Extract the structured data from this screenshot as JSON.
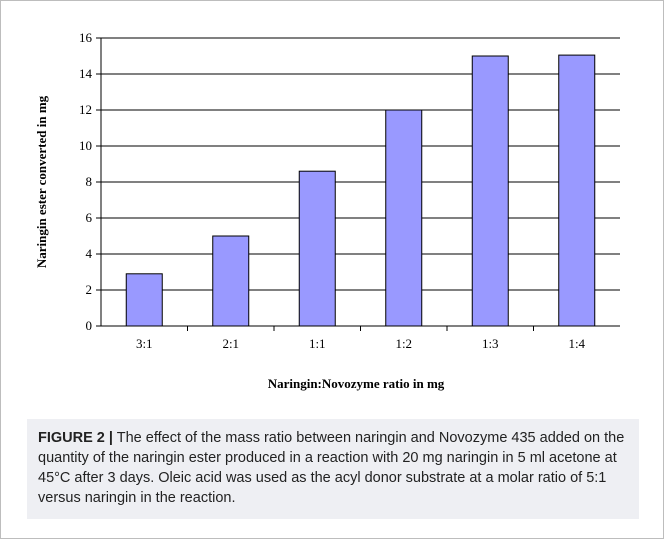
{
  "chart_data": {
    "type": "bar",
    "categories": [
      "3:1",
      "2:1",
      "1:1",
      "1:2",
      "1:3",
      "1:4"
    ],
    "values": [
      2.9,
      5.0,
      8.6,
      12.0,
      15.0,
      15.05
    ],
    "xlabel": "Naringin:Novozyme ratio in mg",
    "ylabel": "Naringin ester converted in mg",
    "ylim": [
      0,
      16
    ],
    "yticks": [
      0,
      2,
      4,
      6,
      8,
      10,
      12,
      14,
      16
    ],
    "bar_color": "#9999ff",
    "grid": true
  },
  "caption": {
    "label": "FIGURE 2 |",
    "text": "The effect of the mass ratio between naringin and Novozyme 435 added on the quantity of the naringin ester produced in a reaction with 20 mg naringin in 5 ml acetone at 45°C after 3 days. Oleic acid was used as the acyl donor substrate at a molar ratio of 5:1 versus naringin in the reaction."
  }
}
